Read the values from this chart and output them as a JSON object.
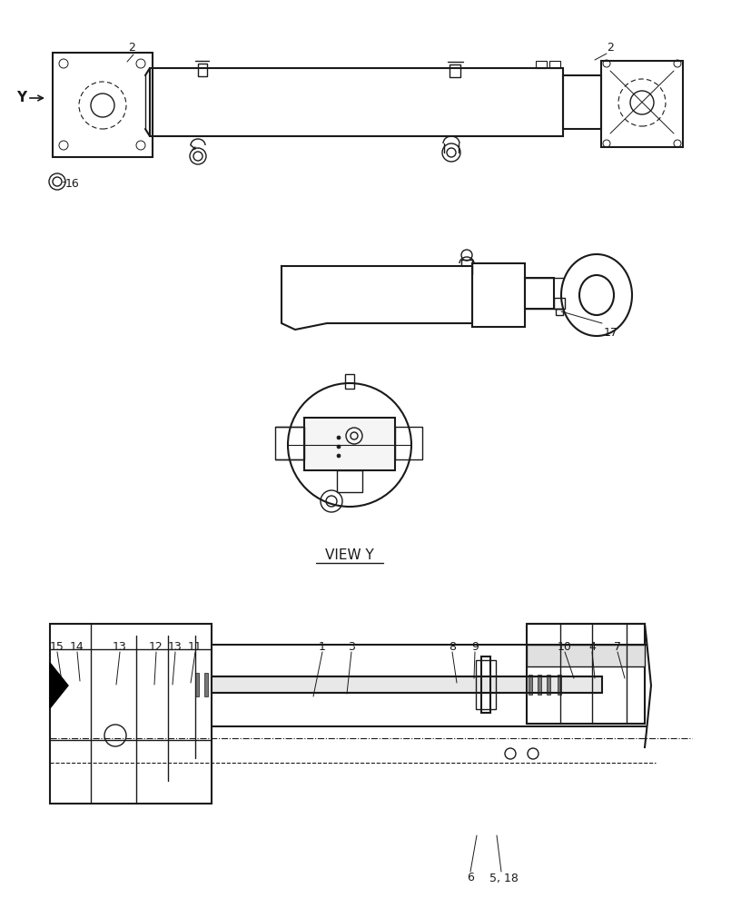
{
  "bg_color": "#ffffff",
  "line_color": "#1a1a1a",
  "view_y_label": "VIEW Y"
}
